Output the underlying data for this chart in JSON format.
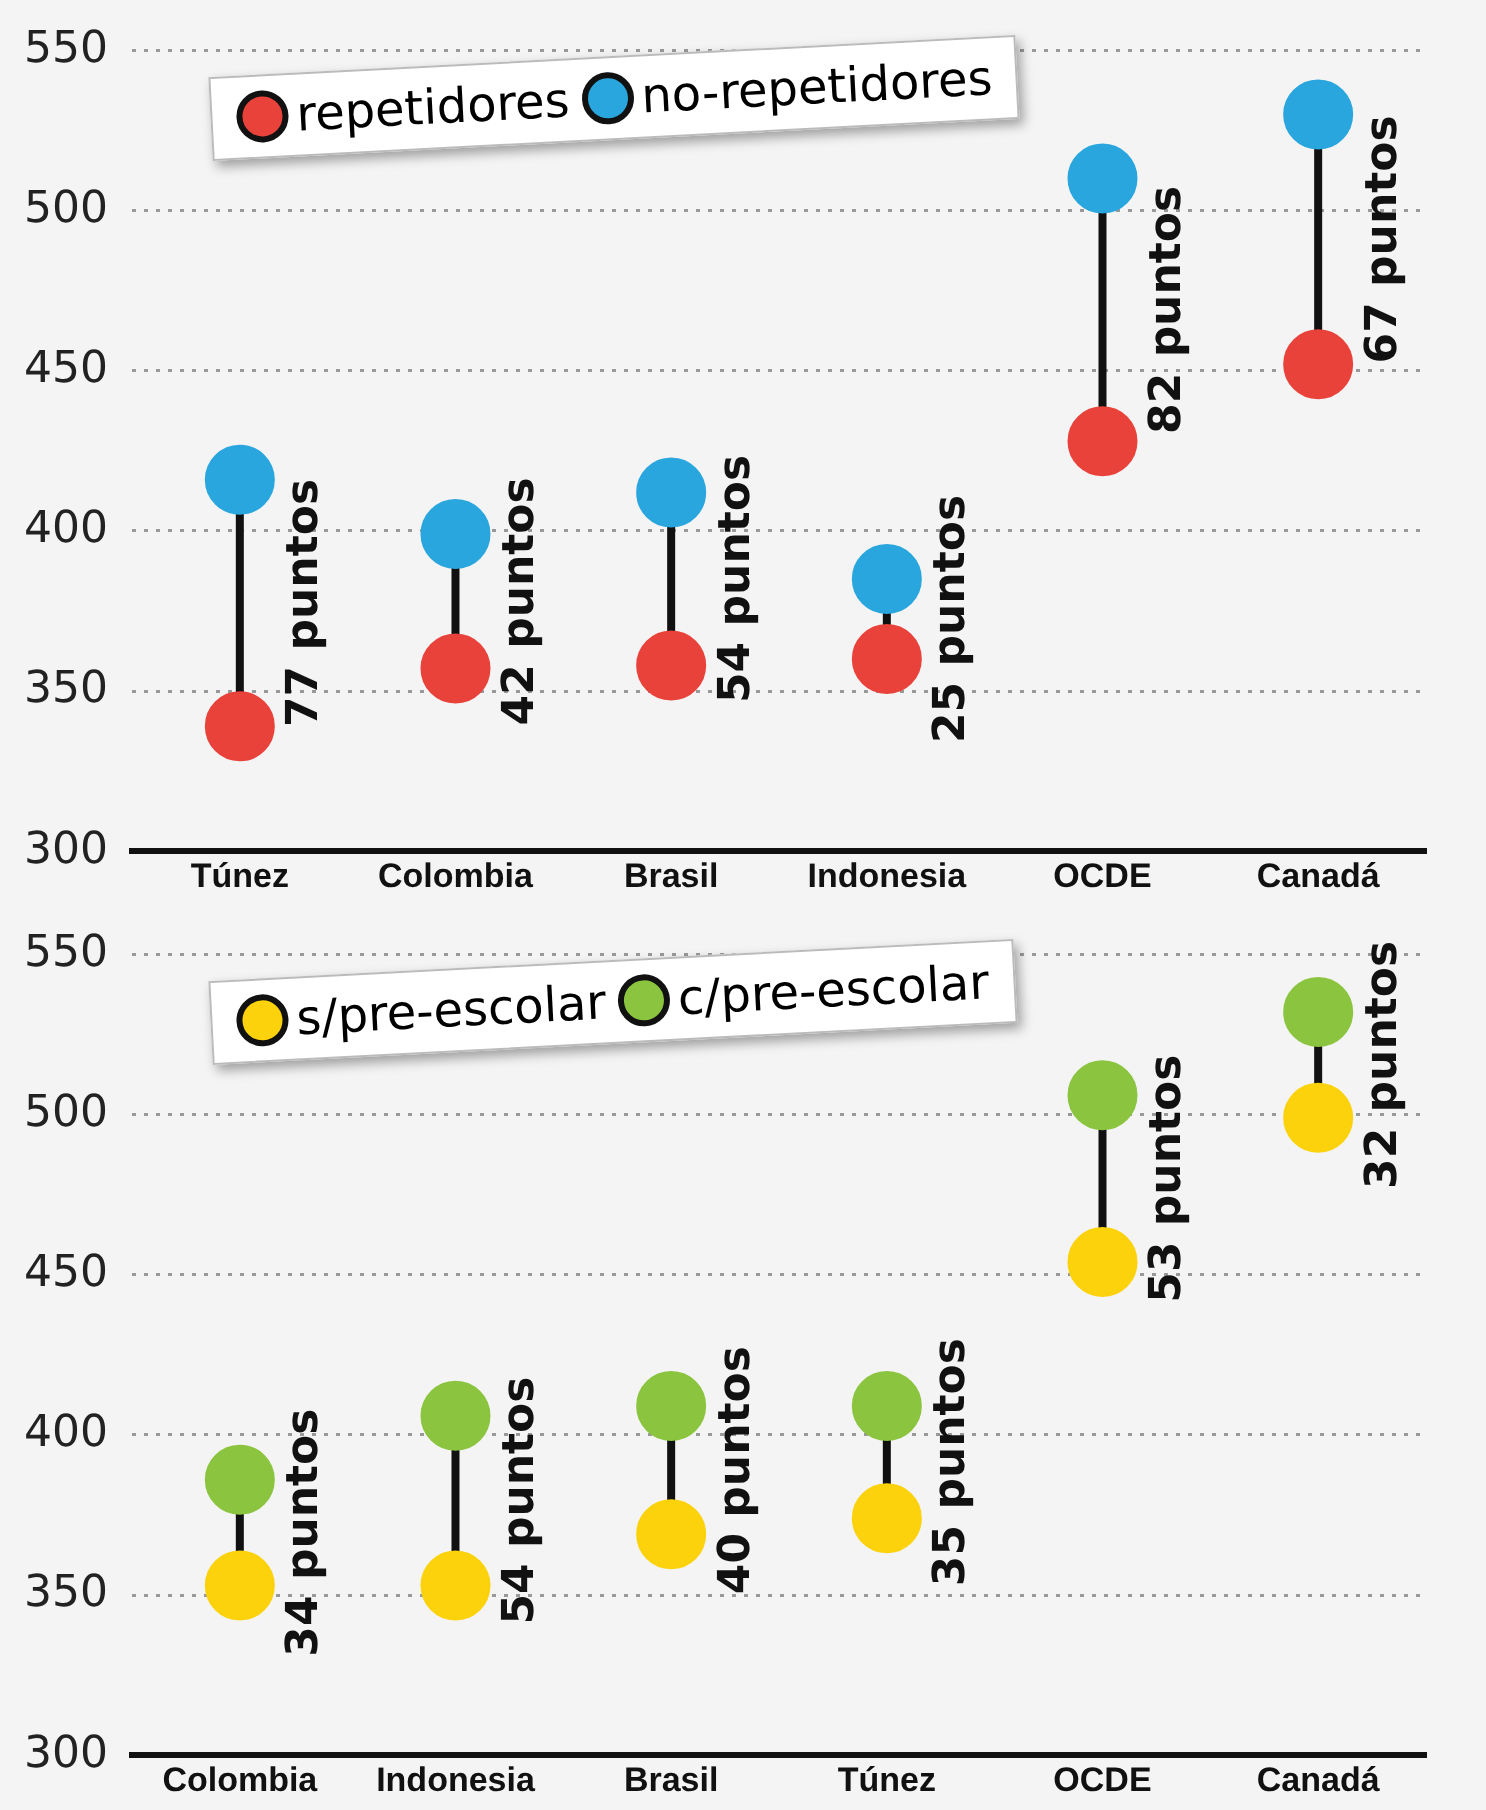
{
  "chart_data": [
    {
      "type": "scatter",
      "categories": [
        "Túnez",
        "Colombia",
        "Brasil",
        "Indonesia",
        "OCDE",
        "Canadá"
      ],
      "series": [
        {
          "name": "repetidores",
          "color": "#e8423b",
          "values": [
            339,
            357,
            358,
            360,
            428,
            452
          ]
        },
        {
          "name": "no-repetidores",
          "color": "#2aa6de",
          "values": [
            416,
            399,
            412,
            385,
            510,
            530
          ]
        }
      ],
      "ylim": [
        300,
        550
      ],
      "yticks": [
        300,
        350,
        400,
        450,
        500,
        550
      ],
      "grid": "y",
      "legend": "top left",
      "marker": "circle",
      "annotations": [
        "77 puntos",
        "42 puntos",
        "54 puntos",
        "25 puntos",
        "82 puntos",
        "67 puntos"
      ]
    },
    {
      "type": "scatter",
      "categories": [
        "Colombia",
        "Indonesia",
        "Brasil",
        "Túnez",
        "OCDE",
        "Canadá"
      ],
      "series": [
        {
          "name": "s/pre-escolar",
          "color": "#fbd20b",
          "values": [
            353,
            353,
            369,
            374,
            454,
            499
          ]
        },
        {
          "name": "c/pre-escolar",
          "color": "#8bc43f",
          "values": [
            386,
            406,
            409,
            409,
            506,
            532
          ]
        }
      ],
      "ylim": [
        300,
        550
      ],
      "yticks": [
        300,
        350,
        400,
        450,
        500,
        550
      ],
      "grid": "y",
      "legend": "top left",
      "marker": "circle",
      "annotations": [
        "34 puntos",
        "54 puntos",
        "40 puntos",
        "35 puntos",
        "53 puntos",
        "32 puntos"
      ]
    }
  ]
}
